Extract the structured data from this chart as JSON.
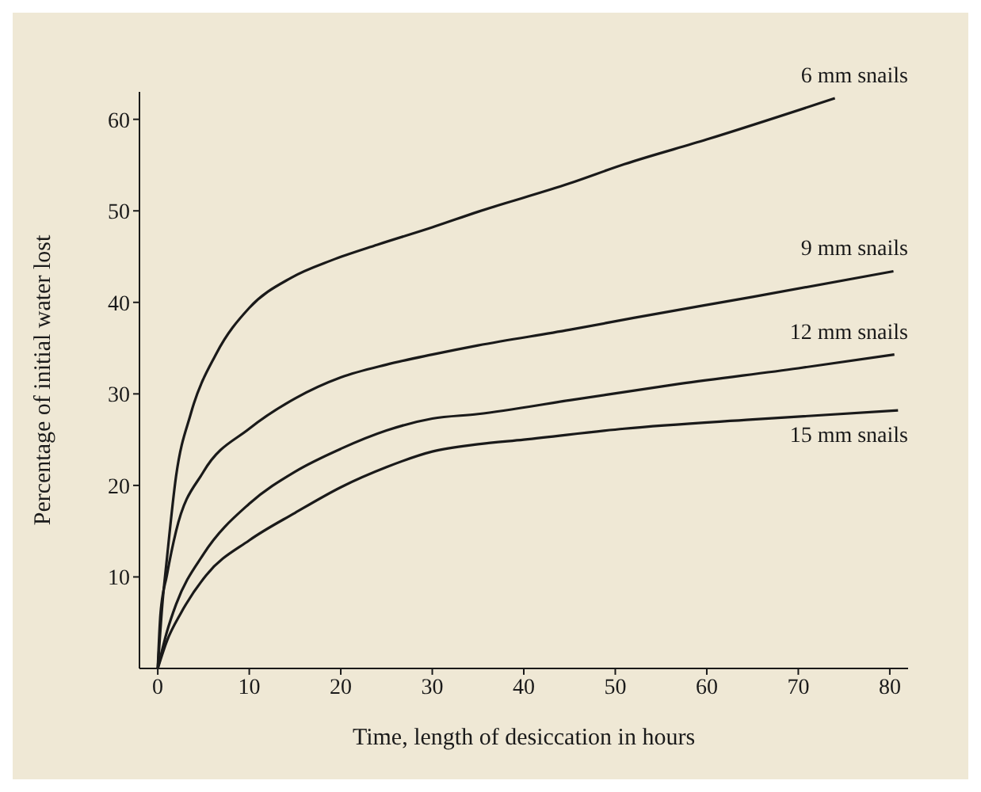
{
  "chart_data": {
    "type": "line",
    "xlabel": "Time, length of desiccation in hours",
    "ylabel": "Percentage of initial water lost",
    "xlim": [
      -2,
      82
    ],
    "xticks": [
      0,
      10,
      20,
      30,
      40,
      50,
      60,
      70,
      80
    ],
    "ylim": [
      0,
      63
    ],
    "yticks": [
      10,
      20,
      30,
      40,
      50,
      60
    ],
    "series": [
      {
        "name": "6 mm snails",
        "color": "#1a1a1a",
        "x": [
          0,
          0.5,
          1,
          2,
          3.6,
          6.4,
          10,
          14.6,
          19,
          24,
          30,
          35,
          45,
          51,
          60,
          74
        ],
        "values": [
          0,
          7,
          12,
          21,
          27.8,
          34.4,
          39.4,
          42.7,
          44.6,
          46.3,
          48.2,
          49.9,
          53,
          55.1,
          57.8,
          62.3
        ]
      },
      {
        "name": "9 mm snails",
        "color": "#1a1a1a",
        "x": [
          0,
          0.3,
          1,
          2,
          5,
          10,
          15,
          20,
          25,
          30,
          35,
          45,
          52,
          65,
          80.4
        ],
        "values": [
          0,
          6,
          10.2,
          15,
          21.5,
          26.2,
          29.5,
          31.8,
          33.2,
          34.3,
          35.3,
          37,
          38.3,
          40.6,
          43.4
        ]
      },
      {
        "name": "12 mm snails",
        "color": "#1a1a1a",
        "x": [
          0,
          1,
          2,
          5,
          10,
          15,
          20,
          25,
          30,
          35,
          45,
          57,
          70,
          80.5
        ],
        "values": [
          0,
          4,
          7,
          12.5,
          18,
          21.5,
          24,
          26,
          27.3,
          27.8,
          29.3,
          31.1,
          32.8,
          34.3
        ]
      },
      {
        "name": "15 mm snails",
        "color": "#1a1a1a",
        "x": [
          0,
          1,
          2.5,
          5.3,
          10,
          15,
          20,
          25,
          30,
          35,
          40,
          51,
          65,
          80.9
        ],
        "values": [
          0,
          3,
          6,
          10.2,
          14,
          17,
          19.8,
          22,
          23.7,
          24.5,
          25,
          26.2,
          27.2,
          28.2
        ]
      }
    ]
  }
}
